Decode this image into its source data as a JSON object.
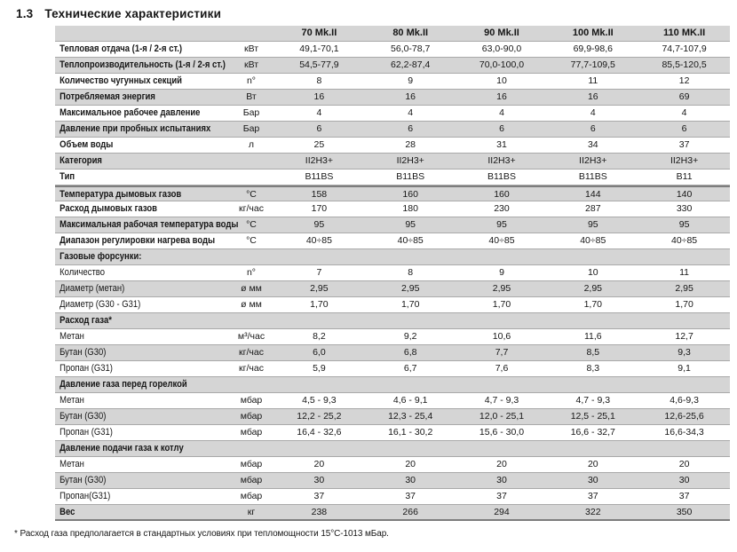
{
  "page_title": {
    "number": "1.3",
    "text": "Технические характеристики"
  },
  "table": {
    "columns": [
      "70 Mk.II",
      "80 Mk.II",
      "90 Mk.II",
      "100 Mk.II",
      "110 MK.II"
    ],
    "rows": [
      {
        "label": "Тепловая отдача (1-я / 2-я ст.)",
        "unit": "кВт",
        "values": [
          "49,1-70,1",
          "56,0-78,7",
          "63,0-90,0",
          "69,9-98,6",
          "74,7-107,9"
        ],
        "kind": "spec"
      },
      {
        "label": "Теплопроизводительность (1-я / 2-я ст.)",
        "unit": "кВт",
        "values": [
          "54,5-77,9",
          "62,2-87,4",
          "70,0-100,0",
          "77,7-109,5",
          "85,5-120,5"
        ],
        "kind": "spec"
      },
      {
        "label": "Количество чугунных секций",
        "unit": "n°",
        "values": [
          "8",
          "9",
          "10",
          "11",
          "12"
        ],
        "kind": "spec"
      },
      {
        "label": "Потребляемая энергия",
        "unit": "Вт",
        "values": [
          "16",
          "16",
          "16",
          "16",
          "69"
        ],
        "kind": "spec"
      },
      {
        "label": "Максимальное рабочее давление",
        "unit": "Бар",
        "values": [
          "4",
          "4",
          "4",
          "4",
          "4"
        ],
        "kind": "spec"
      },
      {
        "label": "Давление при пробных испытаниях",
        "unit": "Бар",
        "values": [
          "6",
          "6",
          "6",
          "6",
          "6"
        ],
        "kind": "spec"
      },
      {
        "label": "Объем воды",
        "unit": "л",
        "values": [
          "25",
          "28",
          "31",
          "34",
          "37"
        ],
        "kind": "spec"
      },
      {
        "label": "Категория",
        "unit": "",
        "values": [
          "II2H3+",
          "II2H3+",
          "II2H3+",
          "II2H3+",
          "II2H3+"
        ],
        "kind": "spec"
      },
      {
        "label": "Тип",
        "unit": "",
        "values": [
          "B11BS",
          "B11BS",
          "B11BS",
          "B11BS",
          "B11"
        ],
        "kind": "spec"
      },
      {
        "label": "Температура дымовых газов",
        "unit": "°C",
        "values": [
          "158",
          "160",
          "160",
          "144",
          "140"
        ],
        "kind": "spec",
        "divider_top": true
      },
      {
        "label": "Расход дымовых газов",
        "unit": "кг/час",
        "values": [
          "170",
          "180",
          "230",
          "287",
          "330"
        ],
        "kind": "spec"
      },
      {
        "label": "Максимальная рабочая температура воды",
        "unit": "°C",
        "values": [
          "95",
          "95",
          "95",
          "95",
          "95"
        ],
        "kind": "spec"
      },
      {
        "label": "Диапазон регулировки нагрева воды",
        "unit": "°C",
        "values": [
          "40÷85",
          "40÷85",
          "40÷85",
          "40÷85",
          "40÷85"
        ],
        "kind": "spec"
      },
      {
        "label": "Газовые форсунки:",
        "unit": "",
        "values": [
          "",
          "",
          "",
          "",
          ""
        ],
        "kind": "section"
      },
      {
        "label": "Количество",
        "unit": "n°",
        "values": [
          "7",
          "8",
          "9",
          "10",
          "11"
        ],
        "kind": "sub"
      },
      {
        "label": "Диаметр (метан)",
        "unit": "ø мм",
        "values": [
          "2,95",
          "2,95",
          "2,95",
          "2,95",
          "2,95"
        ],
        "kind": "sub"
      },
      {
        "label": "Диаметр (G30 - G31)",
        "unit": "ø мм",
        "values": [
          "1,70",
          "1,70",
          "1,70",
          "1,70",
          "1,70"
        ],
        "kind": "sub"
      },
      {
        "label": "Расход газа*",
        "unit": "",
        "values": [
          "",
          "",
          "",
          "",
          ""
        ],
        "kind": "section"
      },
      {
        "label": "Метан",
        "unit": "м³/час",
        "values": [
          "8,2",
          "9,2",
          "10,6",
          "11,6",
          "12,7"
        ],
        "kind": "sub"
      },
      {
        "label": "Бутан (G30)",
        "unit": "кг/час",
        "values": [
          "6,0",
          "6,8",
          "7,7",
          "8,5",
          "9,3"
        ],
        "kind": "sub"
      },
      {
        "label": "Пропан (G31)",
        "unit": "кг/час",
        "values": [
          "5,9",
          "6,7",
          "7,6",
          "8,3",
          "9,1"
        ],
        "kind": "sub"
      },
      {
        "label": "Давление газа перед горелкой",
        "unit": "",
        "values": [
          "",
          "",
          "",
          "",
          ""
        ],
        "kind": "section"
      },
      {
        "label": "Метан",
        "unit": "мбар",
        "values": [
          "4,5 - 9,3",
          "4,6 - 9,1",
          "4,7 - 9,3",
          "4,7 - 9,3",
          "4,6-9,3"
        ],
        "kind": "sub"
      },
      {
        "label": "Бутан (G30)",
        "unit": "мбар",
        "values": [
          "12,2 - 25,2",
          "12,3 - 25,4",
          "12,0 - 25,1",
          "12,5 - 25,1",
          "12,6-25,6"
        ],
        "kind": "sub"
      },
      {
        "label": "Пропан (G31)",
        "unit": "мбар",
        "values": [
          "16,4 - 32,6",
          "16,1 - 30,2",
          "15,6 - 30,0",
          "16,6 - 32,7",
          "16,6-34,3"
        ],
        "kind": "sub"
      },
      {
        "label": "Давление подачи газа к котлу",
        "unit": "",
        "values": [
          "",
          "",
          "",
          "",
          ""
        ],
        "kind": "section"
      },
      {
        "label": "Метан",
        "unit": "мбар",
        "values": [
          "20",
          "20",
          "20",
          "20",
          "20"
        ],
        "kind": "sub"
      },
      {
        "label": "Бутан (G30)",
        "unit": "мбар",
        "values": [
          "30",
          "30",
          "30",
          "30",
          "30"
        ],
        "kind": "sub"
      },
      {
        "label": "Пропан(G31)",
        "unit": "мбар",
        "values": [
          "37",
          "37",
          "37",
          "37",
          "37"
        ],
        "kind": "sub"
      },
      {
        "label": "Вес",
        "unit": "кг",
        "values": [
          "238",
          "266",
          "294",
          "322",
          "350"
        ],
        "kind": "spec"
      }
    ]
  },
  "footnote": "* Расход газа предполагается в стандартных условиях при тепломощности 15°C-1013 мБар.",
  "colors": {
    "text": "#161616",
    "stripe": "#d5d5d5",
    "grid": "#a9a9a9",
    "section_border": "#7d7d7d"
  }
}
